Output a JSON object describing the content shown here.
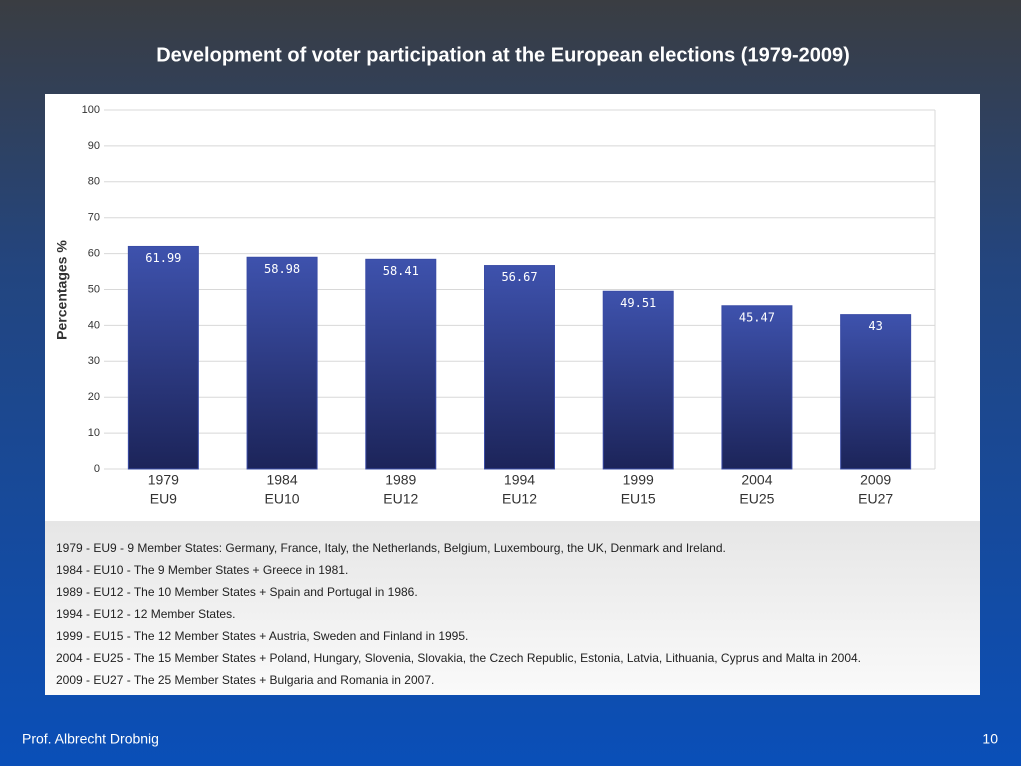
{
  "chart_data": {
    "type": "bar",
    "title": "Development of voter participation at the European elections (1979-2009)",
    "ylabel": "Percentages %",
    "categories": [
      [
        "1979",
        "EU9"
      ],
      [
        "1984",
        "EU10"
      ],
      [
        "1989",
        "EU12"
      ],
      [
        "1994",
        "EU12"
      ],
      [
        "1999",
        "EU15"
      ],
      [
        "2004",
        "EU25"
      ],
      [
        "2009",
        "EU27"
      ]
    ],
    "values": [
      61.99,
      58.98,
      58.41,
      56.67,
      49.51,
      45.47,
      43
    ],
    "color": "#3a4ca6",
    "ylim": [
      0,
      100
    ],
    "yticks": [
      0,
      10,
      20,
      30,
      40,
      50,
      60,
      70,
      80,
      90,
      100
    ],
    "grid": true
  },
  "notes": [
    "1979 - EU9 - 9 Member States: Germany, France, Italy, the Netherlands, Belgium, Luxembourg, the UK, Denmark and Ireland.",
    "1984 - EU10 - The 9 Member States + Greece in 1981.",
    "1989 - EU12 - The 10 Member States + Spain and Portugal in 1986.",
    "1994 - EU12 - 12 Member States.",
    "1999 - EU15 - The 12 Member States + Austria, Sweden and Finland in 1995.",
    "2004 - EU25 - The 15 Member States + Poland, Hungary, Slovenia, Slovakia, the Czech Republic, Estonia, Latvia, Lithuania, Cyprus and Malta in 2004.",
    "2009 - EU27 - The 25 Member States + Bulgaria and Romania in 2007."
  ],
  "footer": {
    "author": "Prof. Albrecht Drobnig",
    "page": "10"
  }
}
